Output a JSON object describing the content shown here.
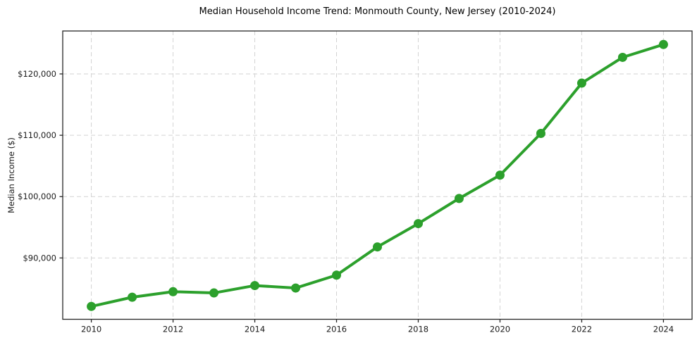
{
  "figure": {
    "background": "#ffffff"
  },
  "chart_data": {
    "type": "line",
    "title": "Median Household Income Trend: Monmouth County, New Jersey (2010-2024)",
    "xlabel": "",
    "ylabel": "Median Income ($)",
    "x": [
      2010,
      2011,
      2012,
      2013,
      2014,
      2015,
      2016,
      2017,
      2018,
      2019,
      2020,
      2021,
      2022,
      2023,
      2024
    ],
    "series": [
      {
        "name": "Median Household Income",
        "color": "#2ca02c",
        "marker": "circle",
        "values": [
          82100,
          83600,
          84500,
          84300,
          85500,
          85100,
          87200,
          91800,
          95600,
          99700,
          103500,
          110300,
          118500,
          122700,
          124800
        ]
      }
    ],
    "xticks": {
      "values": [
        2010,
        2012,
        2014,
        2016,
        2018,
        2020,
        2022,
        2024
      ],
      "labels": [
        "2010",
        "2012",
        "2014",
        "2016",
        "2018",
        "2020",
        "2022",
        "2024"
      ]
    },
    "yticks": {
      "values": [
        90000,
        100000,
        110000,
        120000
      ],
      "labels": [
        "$90,000",
        "$100,000",
        "$110,000",
        "$120,000"
      ]
    },
    "xlim": [
      2009.3,
      2024.7
    ],
    "ylim": [
      80000,
      127000
    ],
    "grid": {
      "visible": true,
      "linestyle": "dashed",
      "color": "#d3d3d3"
    },
    "legend_position": "none",
    "style": {
      "line_width": 4,
      "marker_radius": 6.5,
      "spine_color": "#262626",
      "tick_color": "#262626",
      "tick_label_color": "#1a1a1a",
      "title_color": "#000000"
    }
  }
}
